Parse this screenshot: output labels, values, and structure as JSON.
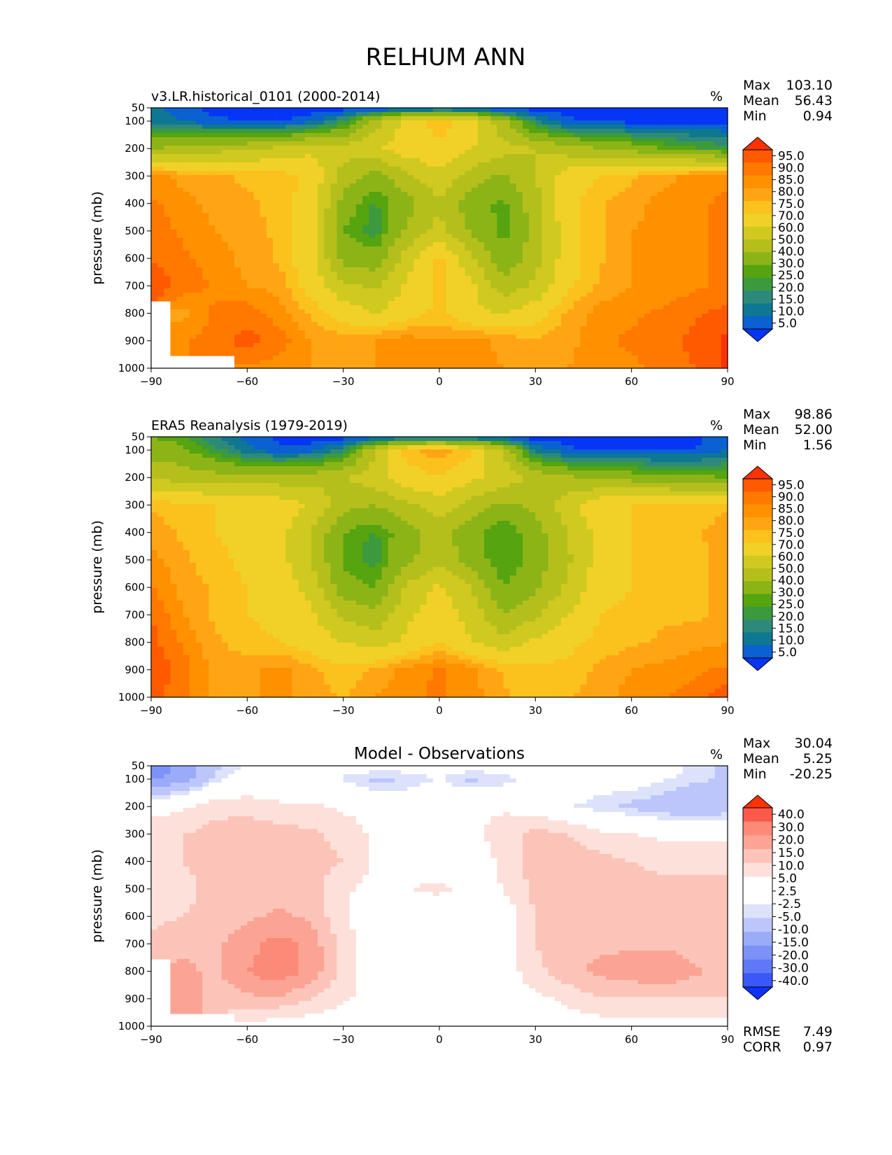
{
  "figure": {
    "title": "RELHUM ANN"
  },
  "chart_data": [
    {
      "type": "heatmap",
      "title": "v3.LR.historical_0101 (2000-2014)",
      "units": "%",
      "ylabel": "pressure (mb)",
      "x_ticks": [
        -90,
        -60,
        -30,
        0,
        30,
        60,
        90
      ],
      "x_tick_labels": [
        "−90",
        "−60",
        "−30",
        "0",
        "30",
        "60",
        "90"
      ],
      "y_ticks": [
        50,
        100,
        200,
        300,
        400,
        500,
        600,
        700,
        800,
        900,
        1000
      ],
      "xlim": [
        -90,
        90
      ],
      "ylim": [
        1000,
        50
      ],
      "stats": [
        {
          "label": "Max",
          "value": "103.10"
        },
        {
          "label": "Mean",
          "value": "56.43"
        },
        {
          "label": "Min",
          "value": "0.94"
        }
      ],
      "colorbar": {
        "levels": [
          "95.0",
          "90.0",
          "85.0",
          "80.0",
          "75.0",
          "70.0",
          "60.0",
          "50.0",
          "40.0",
          "30.0",
          "25.0",
          "20.0",
          "15.0",
          "10.0",
          "5.0"
        ],
        "colors": [
          "#ff3200",
          "#ff5a00",
          "#ff7800",
          "#ff9000",
          "#ffa515",
          "#fbc11c",
          "#f1d128",
          "#d0c920",
          "#b5bf1c",
          "#8cb416",
          "#55a410",
          "#3b9a3e",
          "#2d8a7a",
          "#0e7892",
          "#0b60d2",
          "#0535f5"
        ]
      },
      "field": {
        "lat": [
          -90,
          -80,
          -70,
          -60,
          -50,
          -40,
          -30,
          -20,
          -10,
          0,
          10,
          20,
          30,
          40,
          50,
          60,
          70,
          80,
          90
        ],
        "lev": [
          50,
          100,
          200,
          300,
          400,
          500,
          600,
          700,
          800,
          900,
          1000
        ],
        "values": [
          [
            12,
            6,
            3,
            2,
            2,
            2,
            2,
            2,
            3,
            5,
            3,
            2,
            2,
            2,
            2,
            2,
            2,
            2,
            2
          ],
          [
            14,
            10,
            6,
            5,
            4,
            8,
            20,
            45,
            65,
            74,
            66,
            42,
            16,
            6,
            4,
            3,
            3,
            3,
            3
          ],
          [
            38,
            44,
            46,
            48,
            52,
            58,
            54,
            58,
            66,
            68,
            60,
            54,
            50,
            44,
            40,
            36,
            30,
            26,
            22
          ],
          [
            83,
            78,
            76,
            74,
            73,
            68,
            46,
            36,
            48,
            58,
            46,
            38,
            50,
            66,
            70,
            74,
            78,
            82,
            84
          ],
          [
            86,
            82,
            78,
            76,
            73,
            66,
            36,
            24,
            36,
            48,
            34,
            28,
            46,
            68,
            74,
            78,
            82,
            84,
            86
          ],
          [
            88,
            84,
            80,
            77,
            74,
            64,
            30,
            22,
            42,
            54,
            38,
            27,
            44,
            66,
            74,
            80,
            82,
            84,
            87
          ],
          [
            90,
            86,
            83,
            78,
            74,
            64,
            36,
            34,
            55,
            72,
            52,
            32,
            46,
            66,
            74,
            80,
            82,
            84,
            86
          ],
          [
            94,
            88,
            84,
            80,
            78,
            66,
            52,
            48,
            62,
            72,
            62,
            44,
            52,
            68,
            76,
            80,
            82,
            84,
            86
          ],
          [
            null,
            78,
            86,
            88,
            82,
            74,
            66,
            60,
            66,
            72,
            62,
            60,
            66,
            76,
            82,
            84,
            86,
            89,
            92
          ],
          [
            null,
            84,
            88,
            92,
            88,
            80,
            78,
            80,
            83,
            80,
            83,
            78,
            76,
            78,
            84,
            86,
            88,
            92,
            96
          ],
          [
            null,
            null,
            null,
            84,
            82,
            80,
            78,
            80,
            82,
            80,
            82,
            80,
            78,
            80,
            82,
            84,
            86,
            90,
            96
          ]
        ]
      }
    },
    {
      "type": "heatmap",
      "title": "ERA5 Reanalysis (1979-2019)",
      "units": "%",
      "ylabel": "pressure (mb)",
      "x_ticks": [
        -90,
        -60,
        -30,
        0,
        30,
        60,
        90
      ],
      "x_tick_labels": [
        "−90",
        "−60",
        "−30",
        "0",
        "30",
        "60",
        "90"
      ],
      "y_ticks": [
        50,
        100,
        200,
        300,
        400,
        500,
        600,
        700,
        800,
        900,
        1000
      ],
      "xlim": [
        -90,
        90
      ],
      "ylim": [
        1000,
        50
      ],
      "stats": [
        {
          "label": "Max",
          "value": "98.86"
        },
        {
          "label": "Mean",
          "value": "52.00"
        },
        {
          "label": "Min",
          "value": "1.56"
        }
      ],
      "colorbar": {
        "levels": [
          "95.0",
          "90.0",
          "85.0",
          "80.0",
          "75.0",
          "70.0",
          "60.0",
          "50.0",
          "40.0",
          "30.0",
          "25.0",
          "20.0",
          "15.0",
          "10.0",
          "5.0"
        ],
        "colors": [
          "#ff3200",
          "#ff5a00",
          "#ff7800",
          "#ff9000",
          "#ffa515",
          "#fbc11c",
          "#f1d128",
          "#d0c920",
          "#b5bf1c",
          "#8cb416",
          "#55a410",
          "#3b9a3e",
          "#2d8a7a",
          "#0e7892",
          "#0b60d2",
          "#0535f5"
        ]
      },
      "field": {
        "lat": [
          -90,
          -80,
          -70,
          -60,
          -50,
          -40,
          -30,
          -20,
          -10,
          0,
          10,
          20,
          30,
          40,
          50,
          60,
          70,
          80,
          90
        ],
        "lev": [
          50,
          100,
          200,
          300,
          400,
          500,
          600,
          700,
          800,
          900,
          1000
        ],
        "values": [
          [
            30,
            26,
            16,
            8,
            4,
            2,
            2,
            4,
            6,
            8,
            6,
            4,
            2,
            2,
            2,
            2,
            2,
            4,
            8
          ],
          [
            36,
            32,
            22,
            12,
            6,
            8,
            18,
            50,
            74,
            78,
            72,
            48,
            14,
            6,
            4,
            4,
            4,
            5,
            10
          ],
          [
            48,
            46,
            44,
            44,
            44,
            46,
            50,
            56,
            66,
            70,
            62,
            56,
            48,
            42,
            38,
            36,
            34,
            32,
            30
          ],
          [
            74,
            72,
            70,
            68,
            66,
            58,
            44,
            40,
            48,
            56,
            46,
            38,
            42,
            56,
            68,
            70,
            72,
            72,
            74
          ],
          [
            78,
            74,
            70,
            68,
            64,
            50,
            30,
            24,
            36,
            44,
            34,
            24,
            36,
            50,
            64,
            70,
            72,
            74,
            78
          ],
          [
            82,
            76,
            72,
            68,
            64,
            50,
            28,
            22,
            38,
            46,
            36,
            24,
            34,
            48,
            64,
            70,
            72,
            74,
            76
          ],
          [
            86,
            78,
            74,
            70,
            66,
            56,
            34,
            30,
            52,
            62,
            50,
            30,
            38,
            52,
            66,
            70,
            72,
            74,
            76
          ],
          [
            90,
            80,
            74,
            70,
            68,
            62,
            48,
            42,
            58,
            66,
            56,
            40,
            48,
            60,
            70,
            72,
            74,
            74,
            76
          ],
          [
            92,
            84,
            76,
            72,
            70,
            66,
            60,
            56,
            62,
            70,
            60,
            54,
            62,
            68,
            72,
            74,
            76,
            78,
            80
          ],
          [
            94,
            88,
            78,
            78,
            82,
            76,
            72,
            76,
            82,
            86,
            82,
            74,
            72,
            72,
            76,
            80,
            82,
            84,
            86
          ],
          [
            92,
            86,
            78,
            78,
            82,
            78,
            74,
            80,
            84,
            86,
            82,
            76,
            72,
            74,
            78,
            82,
            84,
            88,
            94
          ]
        ]
      }
    },
    {
      "type": "heatmap",
      "title": "Model - Observations",
      "units": "%",
      "ylabel": "pressure (mb)",
      "x_ticks": [
        -90,
        -60,
        -30,
        0,
        30,
        60,
        90
      ],
      "x_tick_labels": [
        "−90",
        "−60",
        "−30",
        "0",
        "30",
        "60",
        "90"
      ],
      "y_ticks": [
        50,
        100,
        200,
        300,
        400,
        500,
        600,
        700,
        800,
        900,
        1000
      ],
      "xlim": [
        -90,
        90
      ],
      "ylim": [
        1000,
        50
      ],
      "stats": [
        {
          "label": "Max",
          "value": "30.04"
        },
        {
          "label": "Mean",
          "value": "5.25"
        },
        {
          "label": "Min",
          "value": "-20.25"
        }
      ],
      "bottom_stats": [
        {
          "label": "RMSE",
          "value": "7.49"
        },
        {
          "label": "CORR",
          "value": "0.97"
        }
      ],
      "colorbar": {
        "levels": [
          "40.0",
          "30.0",
          "20.0",
          "15.0",
          "10.0",
          "5.0",
          "2.5",
          "-2.5",
          "-5.0",
          "-10.0",
          "-15.0",
          "-20.0",
          "-30.0",
          "-40.0"
        ],
        "colors": [
          "#ff3200",
          "#fb5a4a",
          "#fb8a78",
          "#fba494",
          "#fcc4b8",
          "#fde0da",
          "#ffffff",
          "#ffffff",
          "#dde2fb",
          "#bdc6fa",
          "#9aabf8",
          "#7d92f6",
          "#5e78f6",
          "#3a58f7",
          "#0e32f8"
        ]
      },
      "field": {
        "lat": [
          -90,
          -80,
          -70,
          -60,
          -50,
          -40,
          -30,
          -20,
          -10,
          0,
          10,
          20,
          30,
          40,
          50,
          60,
          70,
          80,
          90
        ],
        "lev": [
          50,
          100,
          200,
          300,
          400,
          500,
          600,
          700,
          800,
          900,
          1000
        ],
        "values": [
          [
            -18,
            -14,
            -6,
            -2,
            0,
            0,
            0,
            0,
            0,
            0,
            0,
            0,
            0,
            0,
            0,
            0,
            0,
            -4,
            -6
          ],
          [
            -16,
            -12,
            -4,
            0,
            0,
            -1,
            -3,
            -6,
            -5,
            -2,
            -6,
            -4,
            -1,
            0,
            0,
            0,
            -2,
            -4,
            -6
          ],
          [
            2,
            4,
            8,
            8,
            6,
            6,
            4,
            3,
            2,
            2,
            4,
            4,
            2,
            -2,
            -4,
            -6,
            -8,
            -10,
            -8
          ],
          [
            9,
            10,
            12,
            14,
            12,
            11,
            8,
            4,
            2,
            2,
            3,
            8,
            12,
            10,
            6,
            5,
            4,
            4,
            4
          ],
          [
            8,
            10,
            12,
            14,
            12,
            12,
            10,
            4,
            1,
            2,
            2,
            6,
            12,
            14,
            12,
            10,
            8,
            8,
            8
          ],
          [
            6,
            8,
            12,
            14,
            12,
            12,
            6,
            3,
            5,
            6,
            4,
            5,
            12,
            14,
            14,
            12,
            12,
            12,
            12
          ],
          [
            8,
            10,
            12,
            14,
            16,
            14,
            6,
            1,
            1,
            1,
            1,
            1,
            10,
            14,
            14,
            14,
            14,
            14,
            14
          ],
          [
            12,
            14,
            14,
            18,
            22,
            18,
            8,
            0,
            -2,
            0,
            -1,
            1,
            10,
            14,
            14,
            14,
            14,
            12,
            12
          ],
          [
            null,
            16,
            14,
            20,
            24,
            18,
            8,
            2,
            0,
            1,
            -3,
            2,
            8,
            14,
            16,
            18,
            20,
            16,
            12
          ],
          [
            null,
            18,
            12,
            14,
            14,
            10,
            6,
            2,
            1,
            1,
            1,
            2,
            4,
            6,
            10,
            10,
            10,
            10,
            10
          ],
          [
            null,
            null,
            null,
            3,
            2,
            1,
            1,
            0,
            0,
            0,
            0,
            1,
            1,
            2,
            2,
            2,
            2,
            2,
            3
          ]
        ]
      }
    }
  ]
}
